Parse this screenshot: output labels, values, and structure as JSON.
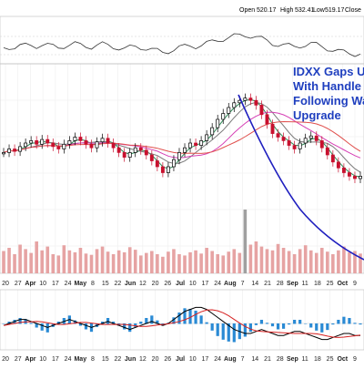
{
  "header": {
    "open_label": "Open",
    "open_value": "520.17",
    "high_label": "High",
    "high_value": "532.41",
    "low_label": "Low",
    "low_value": "519.17",
    "close_label": "Close",
    "close_value": ""
  },
  "annotation": {
    "lines": [
      "IDXX Gaps Up",
      "With Handle B",
      "Following Wal",
      "Upgrade"
    ]
  },
  "colors": {
    "up_candle": "#000000",
    "down_candle": "#c8102e",
    "ma_fast": "#2e8b57",
    "ma_mid": "#7a7a7a",
    "ma_slow_pink": "#d63fb5",
    "ma_slow_red": "#e0504d",
    "arc": "#1f1fbf",
    "volume": "#e6a3a3",
    "volume_highlight": "#a0a0a0",
    "macd_line": "#000000",
    "signal_line": "#d62020",
    "histogram": "#2a8ad4",
    "annotation_text": "#1f3fbf"
  },
  "chart_data": {
    "type": "line",
    "x_axis": {
      "ticks": [
        "20",
        "27",
        "Apr",
        "10",
        "17",
        "24",
        "May",
        "8",
        "15",
        "22",
        "Jun",
        "12",
        "20",
        "26",
        "Jul",
        "10",
        "17",
        "24",
        "Aug",
        "7",
        "14",
        "21",
        "28",
        "Sep",
        "11",
        "18",
        "25",
        "Oct",
        "9"
      ],
      "bold_ticks": [
        "Apr",
        "May",
        "Jun",
        "Jul",
        "Aug",
        "Sep",
        "Oct"
      ]
    },
    "price_panel": {
      "series": [
        {
          "values": [
            0.42,
            0.45,
            0.43,
            0.47,
            0.5,
            0.52,
            0.49,
            0.53,
            0.5,
            0.47,
            0.45,
            0.49,
            0.52,
            0.55,
            0.52,
            0.49,
            0.46,
            0.51,
            0.54,
            0.5,
            0.46,
            0.42,
            0.38,
            0.42,
            0.46,
            0.44,
            0.4,
            0.35,
            0.3,
            0.25,
            0.3,
            0.36,
            0.42,
            0.46,
            0.5,
            0.48,
            0.52,
            0.57,
            0.63,
            0.7,
            0.75,
            0.8,
            0.84,
            0.86,
            0.88,
            0.86,
            0.82,
            0.74,
            0.66,
            0.58,
            0.55,
            0.52,
            0.48,
            0.45,
            0.5,
            0.54,
            0.56,
            0.52,
            0.46,
            0.4,
            0.34,
            0.29,
            0.25,
            0.22,
            0.2,
            0.22
          ]
        }
      ]
    },
    "volume_panel": {
      "values": [
        0.35,
        0.4,
        0.3,
        0.45,
        0.38,
        0.32,
        0.5,
        0.36,
        0.42,
        0.3,
        0.28,
        0.44,
        0.36,
        0.33,
        0.4,
        0.31,
        0.29,
        0.38,
        0.42,
        0.34,
        0.3,
        0.36,
        0.33,
        0.41,
        0.37,
        0.28,
        0.32,
        0.35,
        0.3,
        0.26,
        0.34,
        0.38,
        0.3,
        0.28,
        0.33,
        0.36,
        0.31,
        0.4,
        0.35,
        0.3,
        0.28,
        0.34,
        0.38,
        0.32,
        1.0,
        0.45,
        0.5,
        0.42,
        0.38,
        0.36,
        0.46,
        0.4,
        0.35,
        0.3,
        0.38,
        0.44,
        0.36,
        0.32,
        0.4,
        0.34,
        0.3,
        0.36,
        0.42,
        0.33,
        0.35,
        0.31
      ]
    },
    "macd_panel": {
      "macd": [
        -0.1,
        0.0,
        0.1,
        0.2,
        0.2,
        0.1,
        0.0,
        -0.1,
        -0.2,
        -0.1,
        0.0,
        0.1,
        0.2,
        0.1,
        0.0,
        -0.1,
        -0.2,
        -0.1,
        0.0,
        0.1,
        0.0,
        -0.1,
        -0.2,
        -0.3,
        -0.2,
        -0.1,
        0.0,
        0.1,
        0.0,
        -0.1,
        0.0,
        0.2,
        0.4,
        0.6,
        0.7,
        0.8,
        0.8,
        0.7,
        0.5,
        0.3,
        0.1,
        -0.1,
        -0.3,
        -0.4,
        -0.5,
        -0.5,
        -0.4,
        -0.3,
        -0.4,
        -0.5,
        -0.6,
        -0.6,
        -0.5,
        -0.4,
        -0.4,
        -0.5,
        -0.6,
        -0.7,
        -0.8,
        -0.8,
        -0.7,
        -0.6,
        -0.5,
        -0.5,
        -0.6,
        -0.6
      ]
    }
  }
}
